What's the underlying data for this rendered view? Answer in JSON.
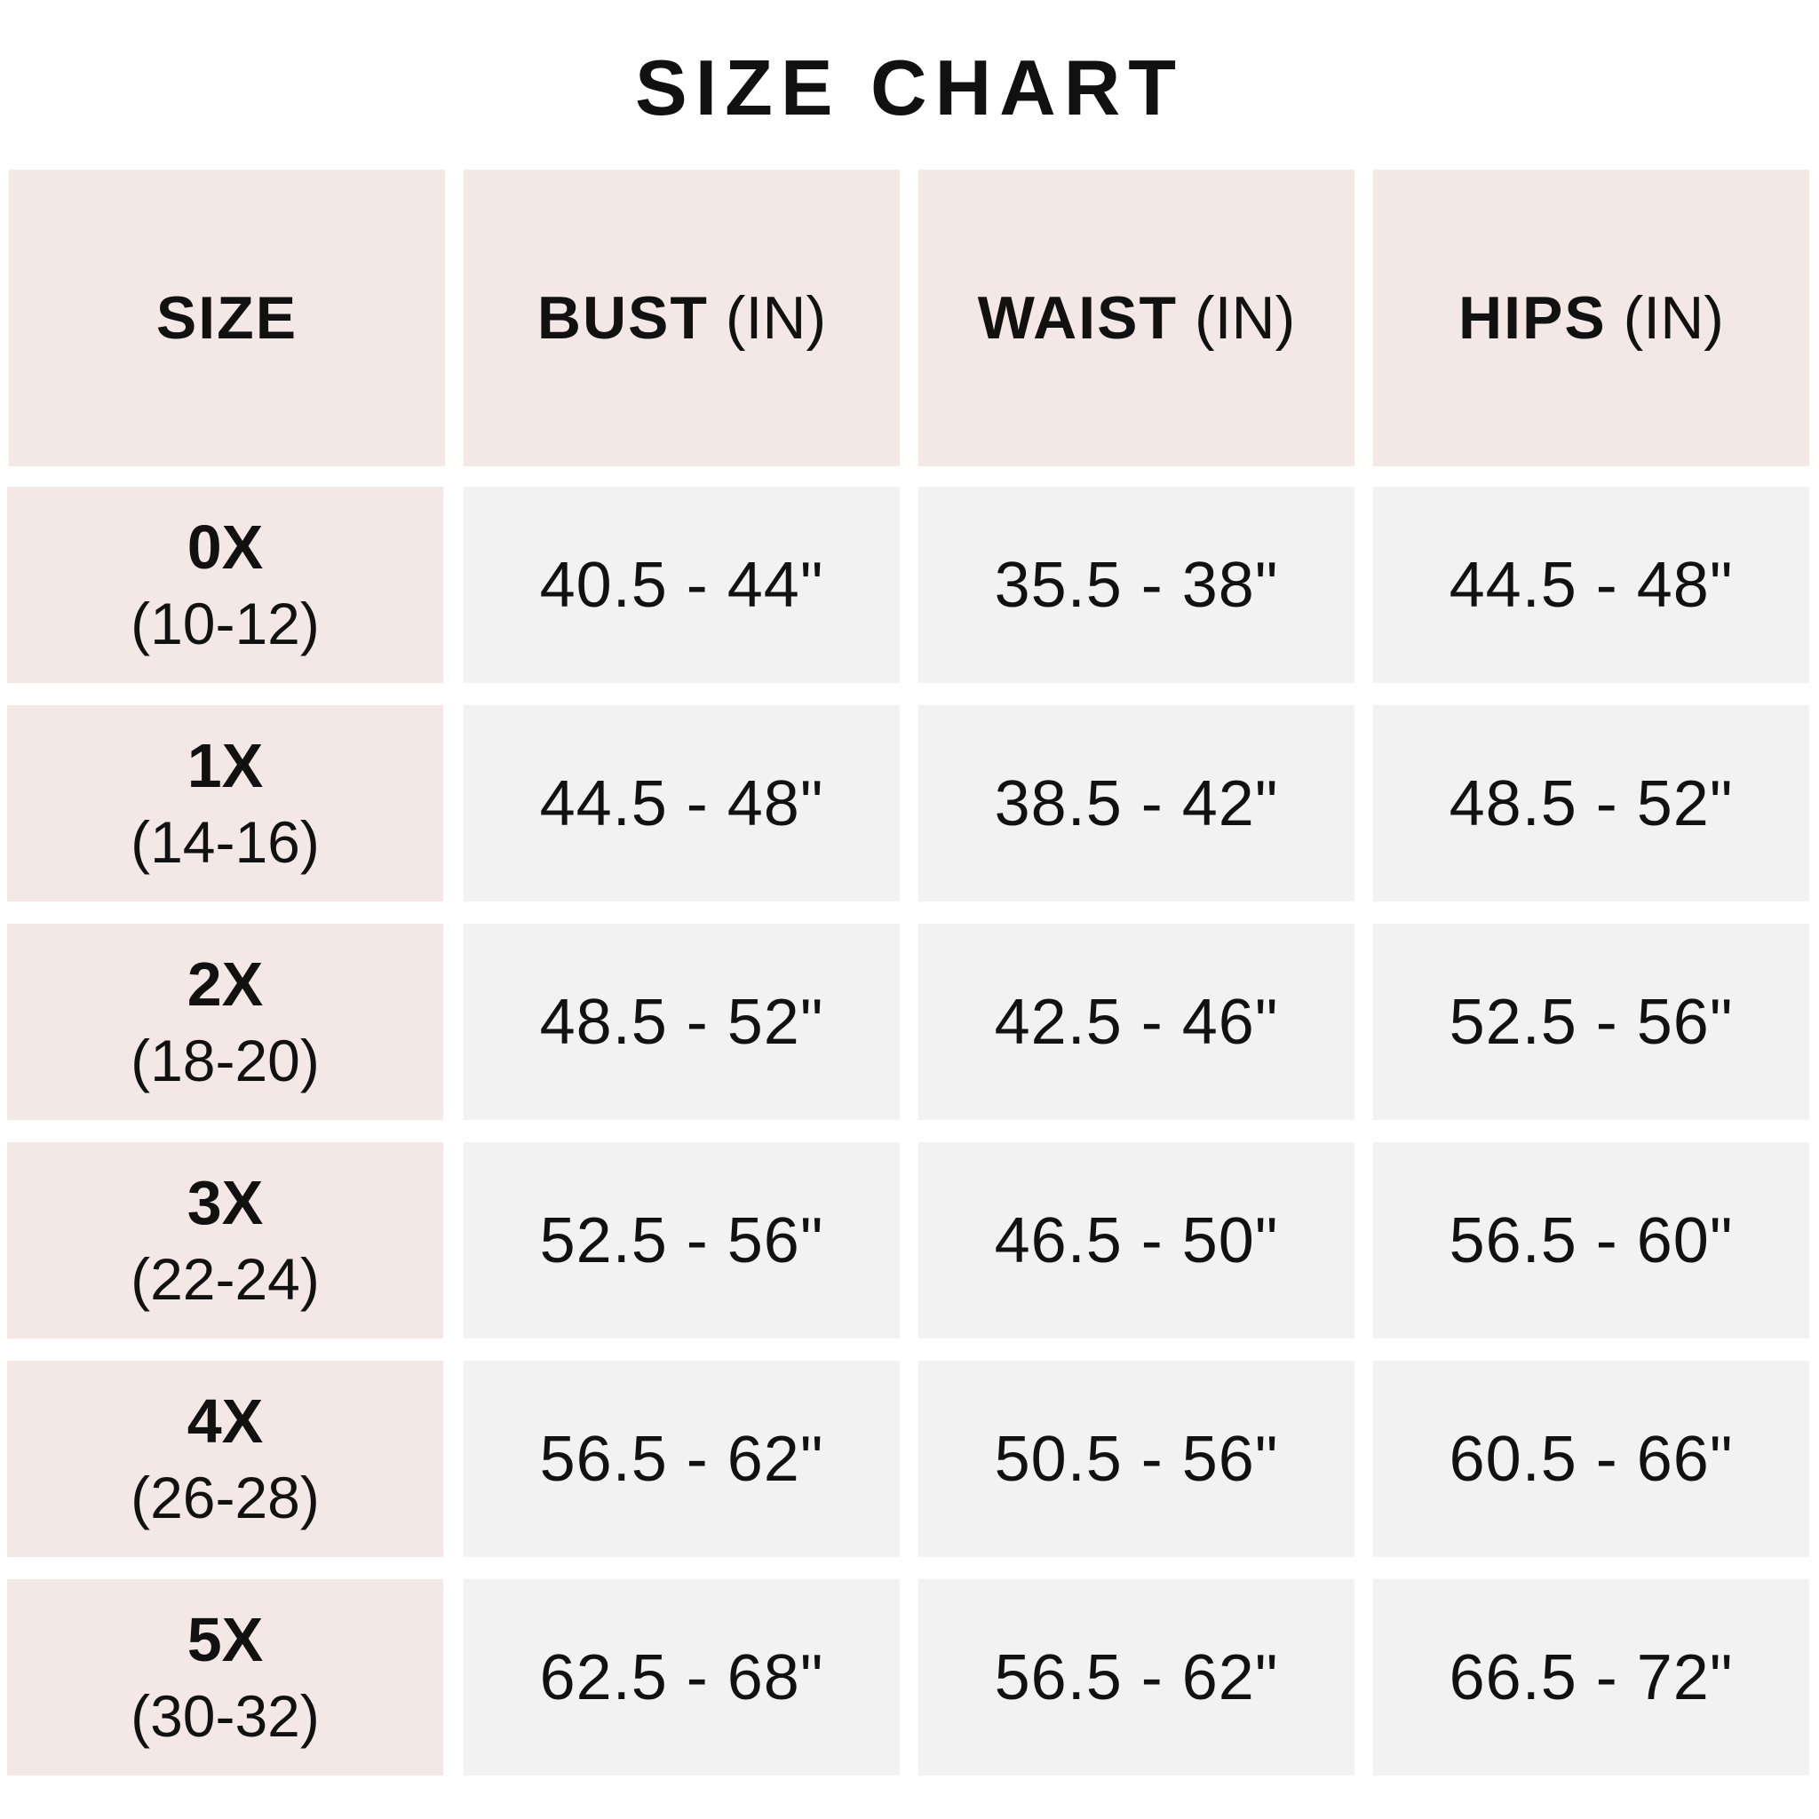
{
  "title": "SIZE CHART",
  "colors": {
    "header_bg": "#f3e8e6",
    "size_col_bg": "#f3e8e6",
    "value_bg": "#f2f2f2",
    "text": "#111111"
  },
  "headers": [
    {
      "label": "SIZE",
      "unit": ""
    },
    {
      "label": "BUST",
      "unit": "(IN)"
    },
    {
      "label": "WAIST",
      "unit": "(IN)"
    },
    {
      "label": "HIPS",
      "unit": "(IN)"
    }
  ],
  "rows": [
    {
      "size": "0X",
      "us": "(10-12)",
      "bust": "40.5 - 44\"",
      "waist": "35.5 - 38\"",
      "hips": "44.5 - 48\""
    },
    {
      "size": "1X",
      "us": "(14-16)",
      "bust": "44.5 - 48\"",
      "waist": "38.5 - 42\"",
      "hips": "48.5 - 52\""
    },
    {
      "size": "2X",
      "us": "(18-20)",
      "bust": "48.5 - 52\"",
      "waist": "42.5 - 46\"",
      "hips": "52.5 - 56\""
    },
    {
      "size": "3X",
      "us": "(22-24)",
      "bust": "52.5 - 56\"",
      "waist": "46.5 - 50\"",
      "hips": "56.5 - 60\""
    },
    {
      "size": "4X",
      "us": "(26-28)",
      "bust": "56.5 - 62\"",
      "waist": "50.5 - 56\"",
      "hips": "60.5 - 66\""
    },
    {
      "size": "5X",
      "us": "(30-32)",
      "bust": "62.5 - 68\"",
      "waist": "56.5 - 62\"",
      "hips": "66.5 - 72\""
    }
  ]
}
